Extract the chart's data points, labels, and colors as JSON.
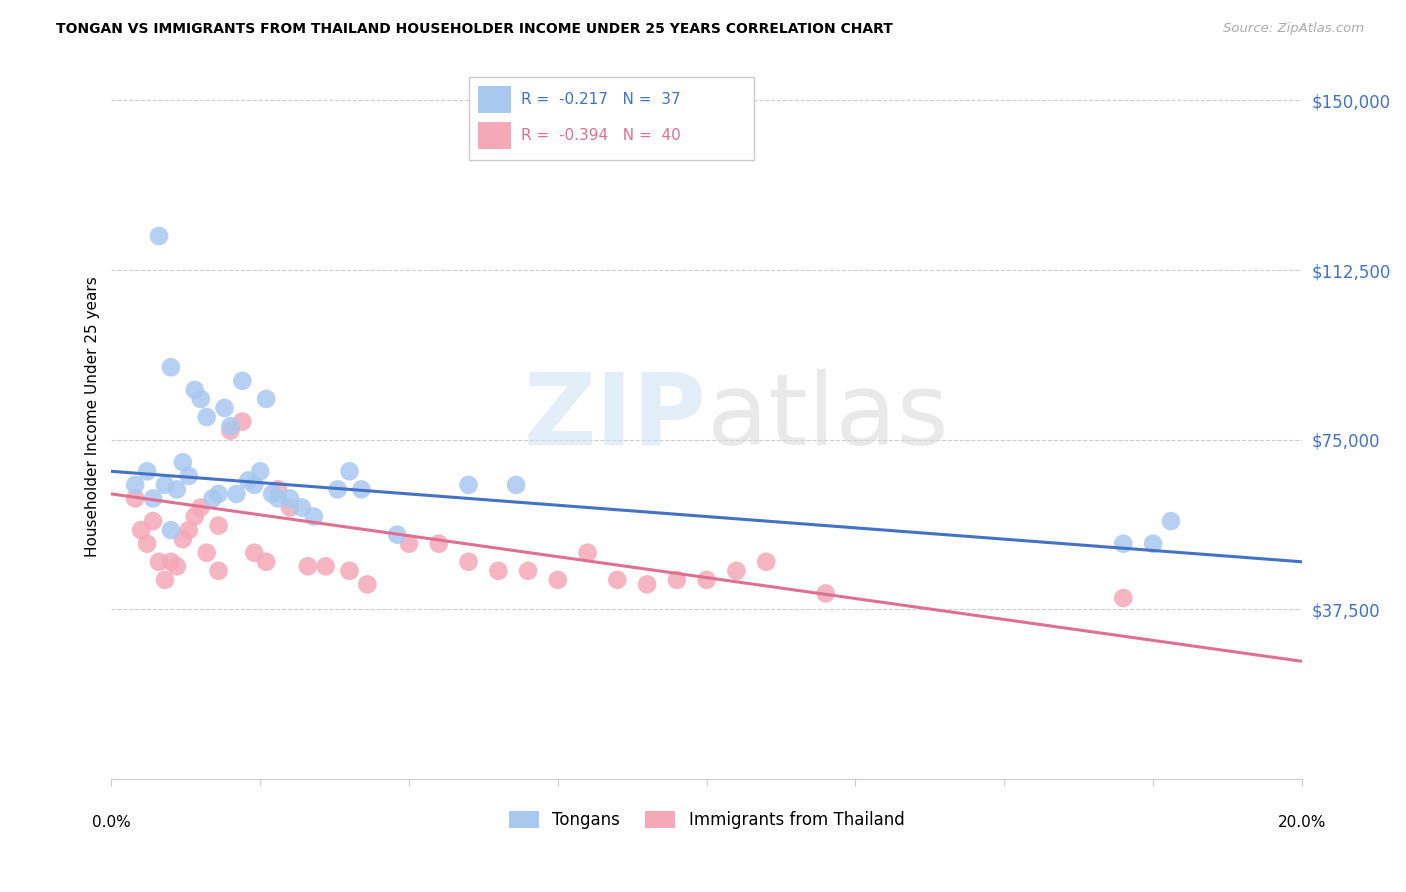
{
  "title": "TONGAN VS IMMIGRANTS FROM THAILAND HOUSEHOLDER INCOME UNDER 25 YEARS CORRELATION CHART",
  "source": "Source: ZipAtlas.com",
  "ylabel": "Householder Income Under 25 years",
  "xmin": 0.0,
  "xmax": 0.2,
  "ymin": 0,
  "ymax": 160000,
  "yticks": [
    0,
    37500,
    75000,
    112500,
    150000
  ],
  "ytick_labels": [
    "",
    "$37,500",
    "$75,000",
    "$112,500",
    "$150,000"
  ],
  "grid_color": "#cccccc",
  "R1": "-0.217",
  "N1": "37",
  "R2": "-0.394",
  "N2": "40",
  "color_blue": "#a8c8f0",
  "color_pink": "#f5a8b8",
  "line_blue": "#4472c4",
  "line_pink": "#e07090",
  "label_blue": "#4472c4",
  "label_pink": "#e07090",
  "legend_label1": "Tongans",
  "legend_label2": "Immigrants from Thailand",
  "blue_line_y0": 68000,
  "blue_line_y1": 48000,
  "pink_line_y0": 63000,
  "pink_line_y1": 26000,
  "tongans_x": [
    0.004,
    0.006,
    0.007,
    0.008,
    0.009,
    0.01,
    0.011,
    0.012,
    0.013,
    0.014,
    0.015,
    0.016,
    0.017,
    0.018,
    0.019,
    0.02,
    0.021,
    0.022,
    0.023,
    0.024,
    0.025,
    0.026,
    0.027,
    0.028,
    0.03,
    0.032,
    0.034,
    0.038,
    0.04,
    0.042,
    0.048,
    0.06,
    0.068,
    0.17,
    0.175,
    0.178,
    0.01
  ],
  "tongans_y": [
    65000,
    68000,
    62000,
    120000,
    65000,
    91000,
    64000,
    70000,
    67000,
    86000,
    84000,
    80000,
    62000,
    63000,
    82000,
    78000,
    63000,
    88000,
    66000,
    65000,
    68000,
    84000,
    63000,
    62000,
    62000,
    60000,
    58000,
    64000,
    68000,
    64000,
    54000,
    65000,
    65000,
    52000,
    52000,
    57000,
    55000
  ],
  "thailand_x": [
    0.004,
    0.005,
    0.006,
    0.007,
    0.008,
    0.009,
    0.01,
    0.011,
    0.012,
    0.013,
    0.014,
    0.015,
    0.016,
    0.018,
    0.02,
    0.022,
    0.024,
    0.026,
    0.028,
    0.03,
    0.033,
    0.036,
    0.04,
    0.043,
    0.05,
    0.055,
    0.06,
    0.065,
    0.07,
    0.075,
    0.08,
    0.085,
    0.09,
    0.095,
    0.1,
    0.105,
    0.11,
    0.12,
    0.17,
    0.018
  ],
  "thailand_y": [
    62000,
    55000,
    52000,
    57000,
    48000,
    44000,
    48000,
    47000,
    53000,
    55000,
    58000,
    60000,
    50000,
    56000,
    77000,
    79000,
    50000,
    48000,
    64000,
    60000,
    47000,
    47000,
    46000,
    43000,
    52000,
    52000,
    48000,
    46000,
    46000,
    44000,
    50000,
    44000,
    43000,
    44000,
    44000,
    46000,
    48000,
    41000,
    40000,
    46000
  ]
}
